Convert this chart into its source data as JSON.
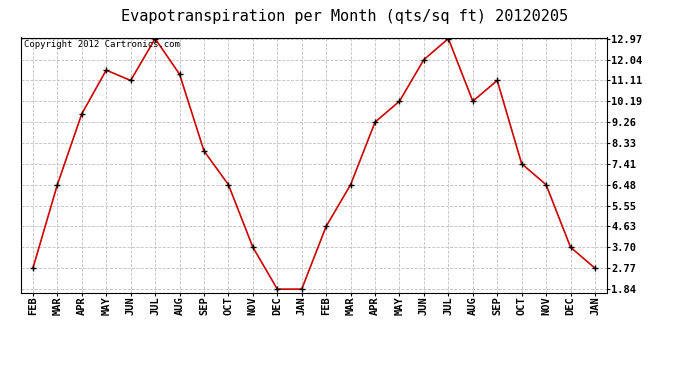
{
  "title": "Evapotranspiration per Month (qts/sq ft) 20120205",
  "copyright_text": "Copyright 2012 Cartronics.com",
  "months": [
    "FEB",
    "MAR",
    "APR",
    "MAY",
    "JUN",
    "JUL",
    "AUG",
    "SEP",
    "OCT",
    "NOV",
    "DEC",
    "JAN",
    "FEB",
    "MAR",
    "APR",
    "MAY",
    "JUN",
    "JUL",
    "AUG",
    "SEP",
    "OCT",
    "NOV",
    "DEC",
    "JAN"
  ],
  "values": [
    2.77,
    6.48,
    9.63,
    11.57,
    11.11,
    12.97,
    11.39,
    7.98,
    6.48,
    3.7,
    1.84,
    1.84,
    4.63,
    6.48,
    9.26,
    10.19,
    12.04,
    12.97,
    10.19,
    11.11,
    7.41,
    6.48,
    3.7,
    2.77
  ],
  "yticks": [
    1.84,
    2.77,
    3.7,
    4.63,
    5.55,
    6.48,
    7.41,
    8.33,
    9.26,
    10.19,
    11.11,
    12.04,
    12.97
  ],
  "ytick_labels": [
    "1.84",
    "2.77",
    "3.70",
    "4.63",
    "5.55",
    "6.48",
    "7.41",
    "8.33",
    "9.26",
    "10.19",
    "11.11",
    "12.04",
    "12.97"
  ],
  "ylim_min": 1.84,
  "ylim_max": 12.97,
  "line_color": "#cc0000",
  "marker_color": "#000000",
  "bg_color": "#ffffff",
  "grid_color": "#c0c0c0",
  "title_fontsize": 11,
  "copyright_fontsize": 6.5,
  "tick_fontsize": 7.5
}
